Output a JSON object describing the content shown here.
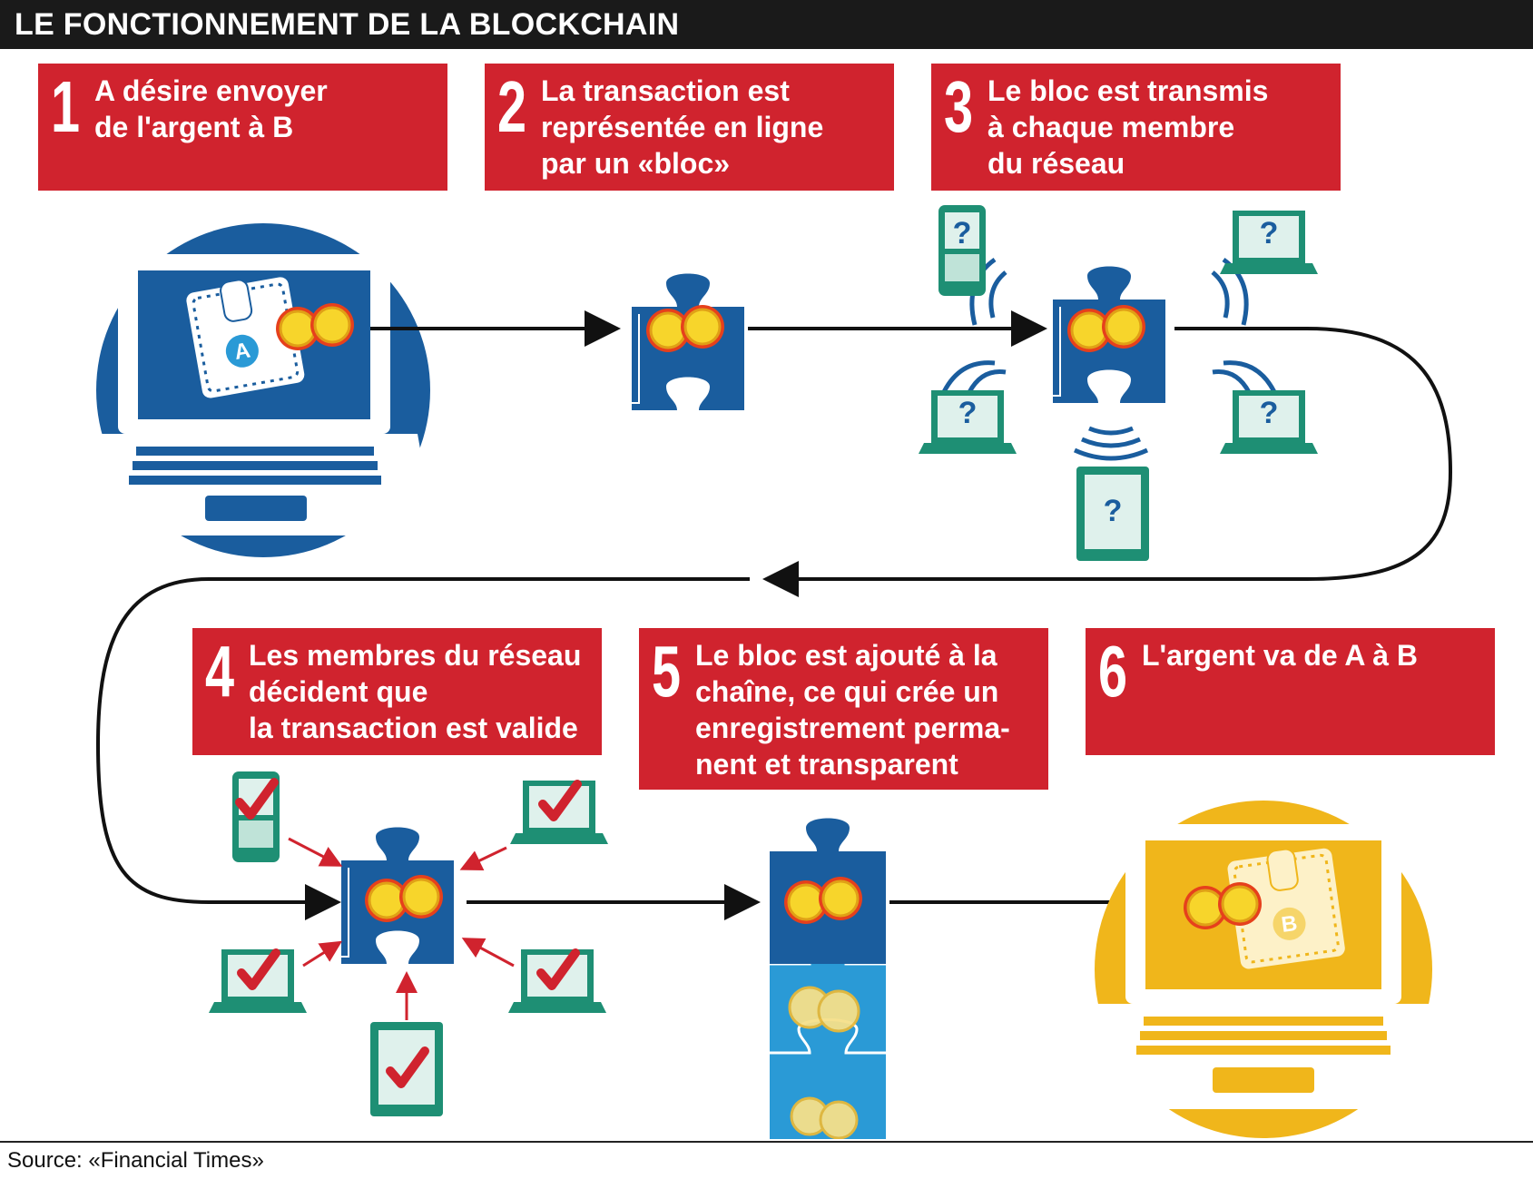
{
  "header": {
    "title": "LE FONCTIONNEMENT DE LA BLOCKCHAIN"
  },
  "steps": [
    {
      "number": "1",
      "text": "A désire envoyer\nde l'argent à B"
    },
    {
      "number": "2",
      "text": "La transaction est\nreprésentée en ligne\npar un «bloc»"
    },
    {
      "number": "3",
      "text": "Le bloc est transmis\nà chaque membre\ndu réseau"
    },
    {
      "number": "4",
      "text": "Les membres du réseau\ndécident que\nla transaction est valide"
    },
    {
      "number": "5",
      "text": "Le bloc est ajouté à la\nchaîne, ce qui crée un\nenregistrement perma-\nnent et transparent"
    },
    {
      "number": "6",
      "text": "L'argent va de A à B"
    }
  ],
  "labels": {
    "wallet_a": "A",
    "wallet_b": "B",
    "question": "?"
  },
  "source": "Source: «Financial Times»",
  "colors": {
    "red": "#d0232e",
    "blue": "#1a5d9e",
    "light_blue": "#2a9ad6",
    "green": "#1e8f74",
    "yellow": "#f0b61b",
    "coin": "#f5d327"
  }
}
